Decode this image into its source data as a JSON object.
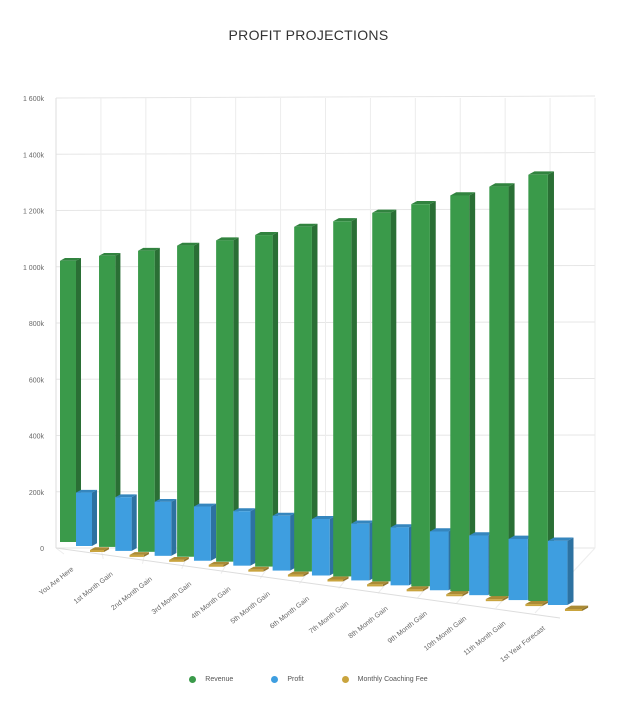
{
  "chart_data": {
    "type": "bar",
    "title": "PROFIT PROJECTIONS",
    "xlabel": "",
    "ylabel": "",
    "categories": [
      "You Are Here",
      "1st Month Gain",
      "2nd Month Gain",
      "3rd Month Gain",
      "4th Month Gain",
      "5th Month Gain",
      "6th Month Gain",
      "7th Month Gain",
      "8th Month Gain",
      "9th Month Gain",
      "10th Month Gain",
      "11th Month Gain",
      "1st Year Forecast"
    ],
    "series": [
      {
        "name": "Revenue",
        "color": "#3a9a4a",
        "values": [
          1000000,
          1030000,
          1060000,
          1090000,
          1120000,
          1150000,
          1190000,
          1220000,
          1260000,
          1300000,
          1340000,
          1380000,
          1430000
        ]
      },
      {
        "name": "Profit",
        "color": "#3e9ee0",
        "values": [
          190000,
          190000,
          190000,
          190000,
          190000,
          190000,
          195000,
          195000,
          198000,
          200000,
          202000,
          206000,
          215000
        ]
      },
      {
        "name": "Monthly Coaching Fee",
        "color": "#c9a43e",
        "values": [
          3000,
          3000,
          3000,
          3000,
          3000,
          3000,
          3000,
          3000,
          3000,
          3000,
          3000,
          3000,
          3000
        ]
      }
    ],
    "ylim": [
      0,
      1600000
    ],
    "yticks": [
      "0",
      "200k",
      "400k",
      "600k",
      "800k",
      "1 000k",
      "1 200k",
      "1 400k",
      "1 600k"
    ],
    "grid": true,
    "legend_position": "bottom"
  }
}
